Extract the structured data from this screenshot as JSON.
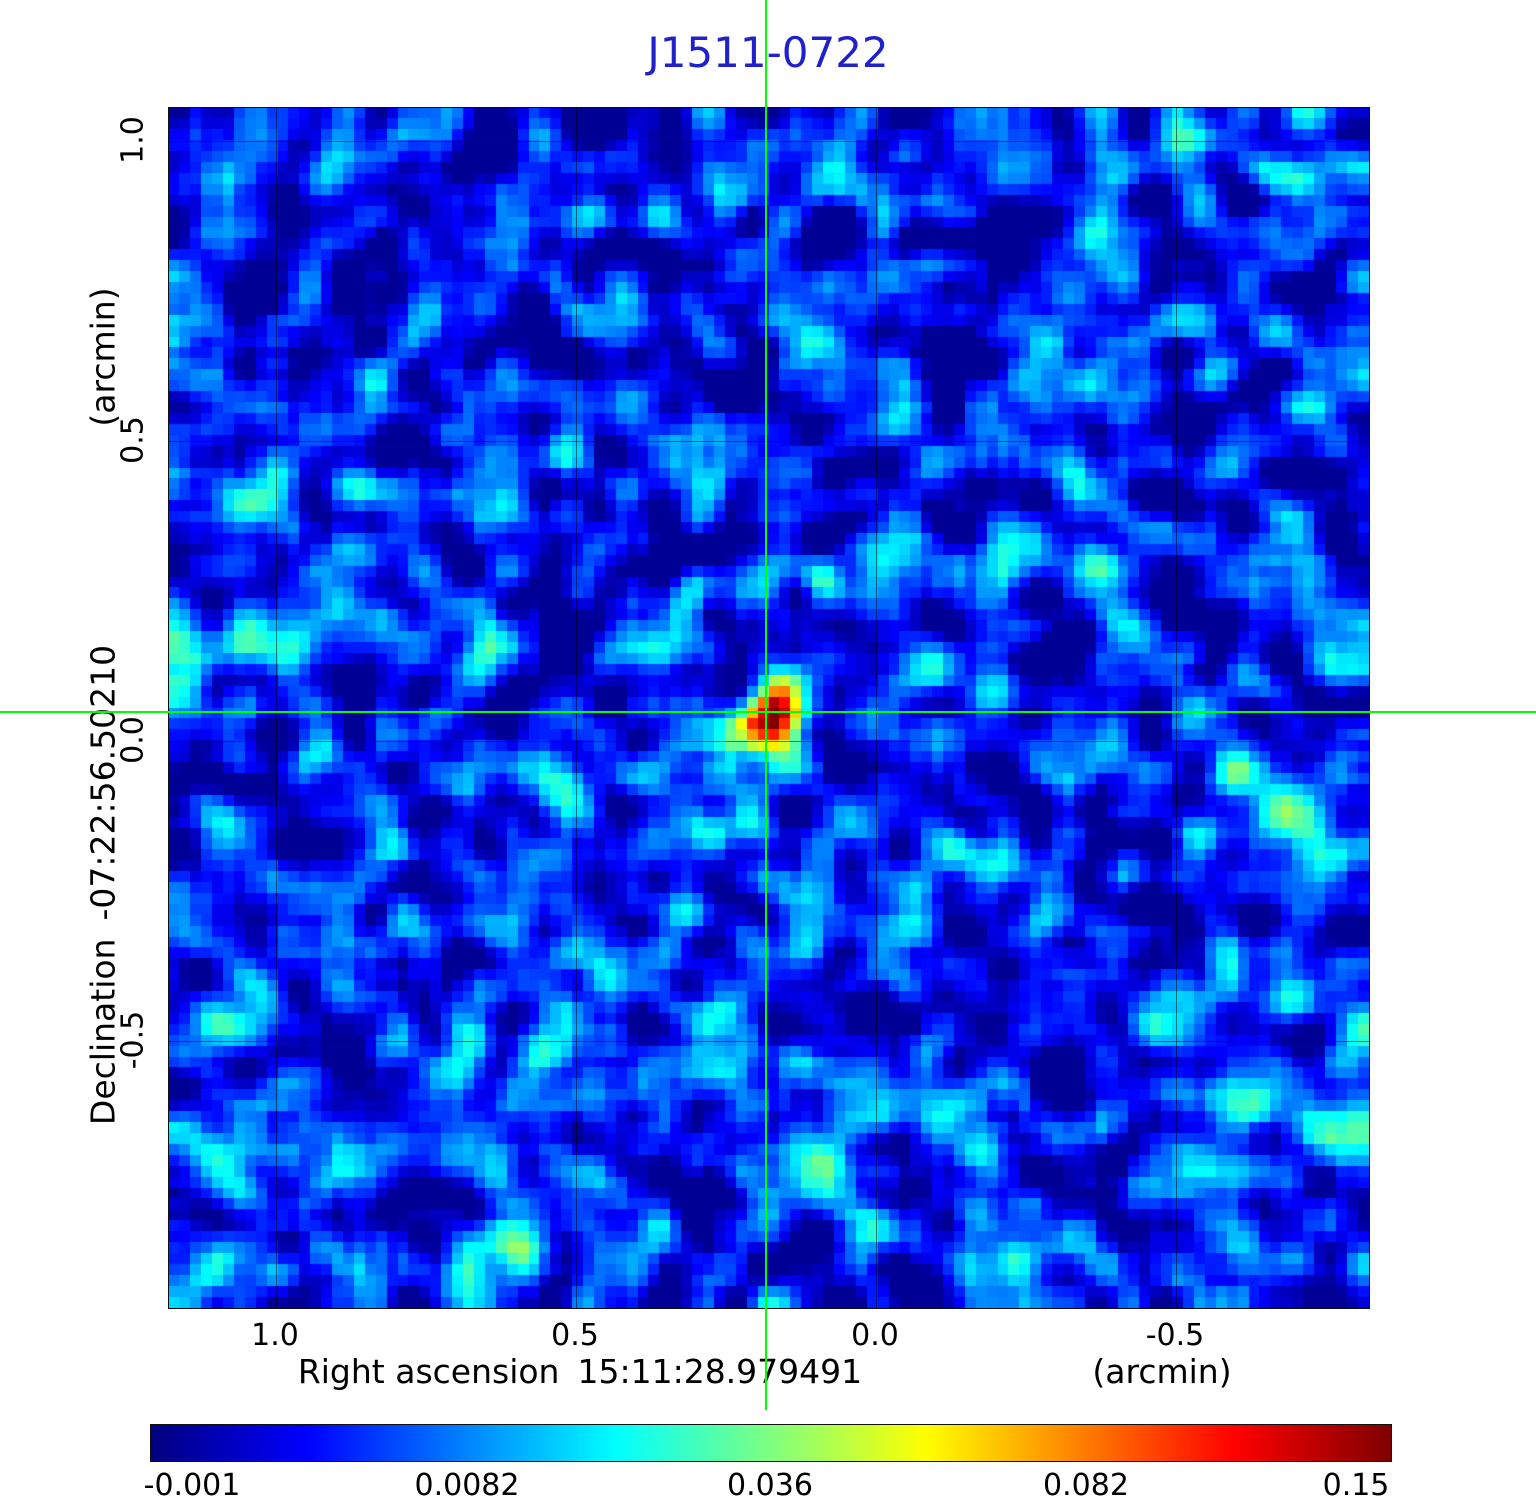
{
  "title": "J1511-0722",
  "colors": {
    "title": "#2121cc",
    "crosshair": "#00ff00",
    "background_sky": "#0228e8"
  },
  "axes": {
    "x": {
      "label": "Right ascension",
      "value": "15:11:28.979491",
      "unit": "(arcmin)",
      "ticks": [
        "1.0",
        "0.5",
        "0.0",
        "-0.5"
      ]
    },
    "y": {
      "label": "Declination",
      "value": "-07:22:56.50210",
      "unit": "(arcmin)",
      "ticks": [
        "1.0",
        "0.5",
        "0.0",
        "-0.5"
      ]
    }
  },
  "colorbar": {
    "colormap": "jet",
    "ticks": [
      "-0.001",
      "0.0082",
      "0.036",
      "0.082",
      "0.15"
    ]
  },
  "chart_data": {
    "type": "heatmap",
    "title": "J1511-0722",
    "xlabel": "Right ascension 15:11:28.979491 (arcmin)",
    "ylabel": "Declination -07:22:56.50210 (arcmin)",
    "x_ticks": [
      1.0,
      0.5,
      0.0,
      -0.5
    ],
    "y_ticks": [
      1.0,
      0.5,
      0.0,
      -0.5
    ],
    "x_range_arcmin": [
      1.18,
      -0.82
    ],
    "y_range_arcmin": [
      1.06,
      -0.94
    ],
    "colormap": "jet",
    "colorbar_ticks": [
      -0.001,
      0.0082,
      0.036,
      0.082,
      0.15
    ],
    "background_level": 0.008,
    "grid": true,
    "source": {
      "x_arcmin": 0.18,
      "y_arcmin": 0.05,
      "peak_value": 0.15,
      "marker": "green-crosshair"
    }
  }
}
